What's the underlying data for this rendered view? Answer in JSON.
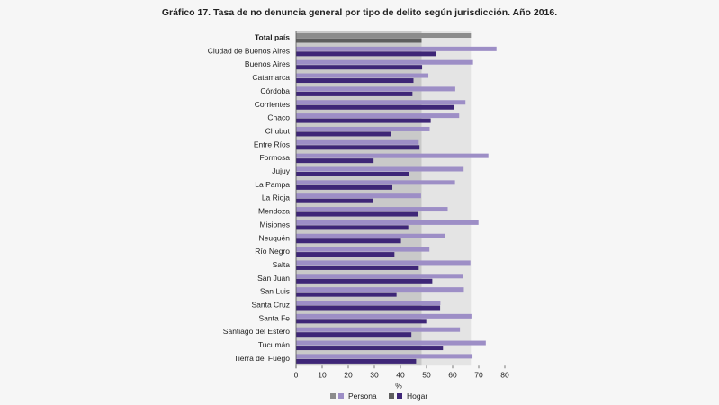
{
  "chart_data": {
    "type": "bar",
    "orientation": "horizontal",
    "title": "Gráfico 17. Tasa de no denuncia general por tipo de delito según jurisdicción. Año 2016.",
    "xlabel": "%",
    "ylabel": "",
    "xlim": [
      0,
      80
    ],
    "xticks": [
      0,
      10,
      20,
      30,
      40,
      50,
      60,
      70,
      80
    ],
    "legend_position": "bottom",
    "categories": [
      "Total país",
      "Ciudad de Buenos Aires",
      "Buenos Aires",
      "Catamarca",
      "Córdoba",
      "Corrientes",
      "Chaco",
      "Chubut",
      "Entre Ríos",
      "Formosa",
      "Jujuy",
      "La Pampa",
      "La Rioja",
      "Mendoza",
      "Misiones",
      "Neuquén",
      "Río Negro",
      "Salta",
      "San Juan",
      "San Luis",
      "Santa Cruz",
      "Santa Fe",
      "Santiago del Estero",
      "Tucumán",
      "Tierra del Fuego"
    ],
    "series": [
      {
        "name": "Persona",
        "color": "#9d8ec6",
        "total_color": "#8c8c8c",
        "values": [
          67.0,
          76.8,
          67.8,
          50.7,
          61.0,
          64.9,
          62.5,
          51.2,
          47.0,
          73.7,
          64.2,
          60.9,
          47.9,
          58.1,
          69.9,
          57.2,
          51.1,
          66.8,
          64.1,
          64.3,
          55.3,
          67.2,
          62.8,
          72.7,
          67.6
        ]
      },
      {
        "name": "Hogar",
        "color": "#3e2677",
        "total_color": "#5e5e5e",
        "values": [
          48.1,
          53.6,
          48.3,
          45.0,
          44.6,
          60.4,
          51.6,
          36.2,
          47.3,
          29.7,
          43.2,
          36.9,
          29.4,
          46.8,
          43.0,
          40.2,
          37.7,
          47.0,
          52.2,
          38.5,
          55.2,
          49.9,
          44.2,
          56.3,
          46.0
        ]
      }
    ],
    "background_bands": {
      "dark": "#c9c9c9",
      "light": "#e4e4e4"
    }
  }
}
